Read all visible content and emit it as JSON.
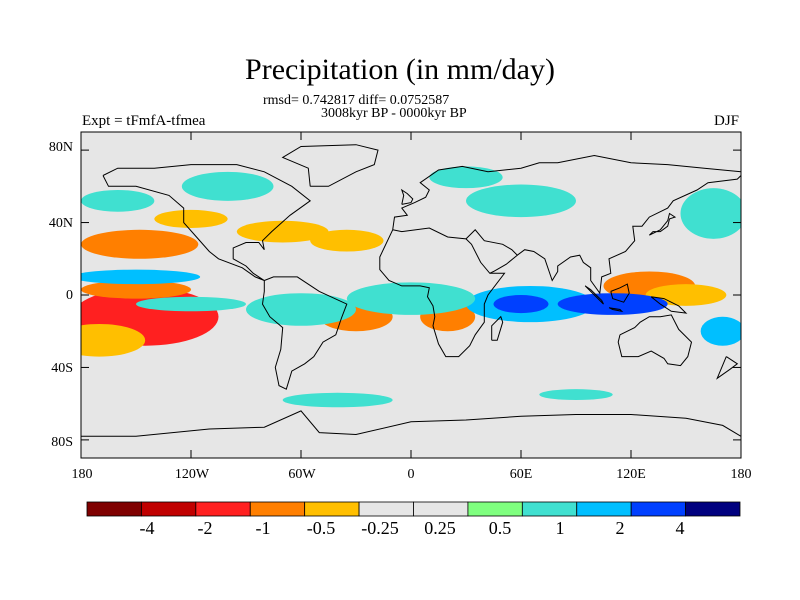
{
  "title": "Precipitation (in mm/day)",
  "stats_line": "rmsd= 0.742817 diff= 0.0752587",
  "period_line": "3008kyr BP - 0000kyr BP",
  "experiment_label": "Expt = tFmfA-tfmea",
  "season_label": "DJF",
  "map": {
    "lon_range": [
      -180,
      180
    ],
    "lat_range": [
      -90,
      90
    ],
    "y_ticks": [
      {
        "lat": 80,
        "label": "80N"
      },
      {
        "lat": 40,
        "label": "40N"
      },
      {
        "lat": 0,
        "label": "0"
      },
      {
        "lat": -40,
        "label": "40S"
      },
      {
        "lat": -80,
        "label": "80S"
      }
    ],
    "x_ticks": [
      {
        "lon": -180,
        "label": "180"
      },
      {
        "lon": -120,
        "label": "120W"
      },
      {
        "lon": -60,
        "label": "60W"
      },
      {
        "lon": 0,
        "label": "0"
      },
      {
        "lon": 60,
        "label": "60E"
      },
      {
        "lon": 120,
        "label": "120E"
      },
      {
        "lon": 180,
        "label": "180"
      }
    ],
    "background_color": "#e6e6e6"
  },
  "colorbar": {
    "colors": [
      "#7f0000",
      "#c00000",
      "#ff2020",
      "#ff7f00",
      "#ffbf00",
      "#e6e6e6",
      "#e6e6e6",
      "#7fff7f",
      "#40e0d0",
      "#00bfff",
      "#0040ff",
      "#00007f"
    ],
    "labels": [
      "-4",
      "-2",
      "-1",
      "-0.5",
      "-0.25",
      "0.25",
      "0.5",
      "1",
      "2",
      "4"
    ]
  },
  "anomalies": [
    {
      "lon": -150,
      "lat": -12,
      "rx": 22,
      "ry": 10,
      "level": -4
    },
    {
      "lon": -145,
      "lat": -12,
      "rx": 40,
      "ry": 16,
      "level": -2
    },
    {
      "lon": -150,
      "lat": 3,
      "rx": 30,
      "ry": 5,
      "level": -1
    },
    {
      "lon": -148,
      "lat": 28,
      "rx": 32,
      "ry": 8,
      "level": -1
    },
    {
      "lon": -70,
      "lat": 35,
      "rx": 25,
      "ry": 6,
      "level": -0.5
    },
    {
      "lon": -35,
      "lat": 30,
      "rx": 20,
      "ry": 6,
      "level": -0.5
    },
    {
      "lon": -30,
      "lat": -12,
      "rx": 20,
      "ry": 8,
      "level": -1
    },
    {
      "lon": 20,
      "lat": -12,
      "rx": 15,
      "ry": 8,
      "level": -1
    },
    {
      "lon": 130,
      "lat": 5,
      "rx": 25,
      "ry": 8,
      "level": -1
    },
    {
      "lon": 150,
      "lat": 0,
      "rx": 22,
      "ry": 6,
      "level": -0.5
    },
    {
      "lon": -170,
      "lat": -25,
      "rx": 25,
      "ry": 9,
      "level": -0.5
    },
    {
      "lon": -120,
      "lat": 42,
      "rx": 20,
      "ry": 5,
      "level": -0.5
    },
    {
      "lon": 65,
      "lat": -5,
      "rx": 35,
      "ry": 10,
      "level": 1
    },
    {
      "lon": 60,
      "lat": -5,
      "rx": 15,
      "ry": 5,
      "level": 2
    },
    {
      "lon": 110,
      "lat": -5,
      "rx": 30,
      "ry": 6,
      "level": 2
    },
    {
      "lon": -150,
      "lat": 10,
      "rx": 35,
      "ry": 4,
      "level": 1
    },
    {
      "lon": -120,
      "lat": -5,
      "rx": 30,
      "ry": 4,
      "level": 0.5
    },
    {
      "lon": -60,
      "lat": -8,
      "rx": 30,
      "ry": 9,
      "level": 0.5
    },
    {
      "lon": 0,
      "lat": -2,
      "rx": 35,
      "ry": 9,
      "level": 0.5
    },
    {
      "lon": 60,
      "lat": 52,
      "rx": 30,
      "ry": 9,
      "level": 0.5
    },
    {
      "lon": -100,
      "lat": 60,
      "rx": 25,
      "ry": 8,
      "level": 0.5
    },
    {
      "lon": -160,
      "lat": 52,
      "rx": 20,
      "ry": 6,
      "level": 0.5
    },
    {
      "lon": 30,
      "lat": 65,
      "rx": 20,
      "ry": 6,
      "level": 0.5
    },
    {
      "lon": 165,
      "lat": 45,
      "rx": 18,
      "ry": 14,
      "level": 0.5
    },
    {
      "lon": -40,
      "lat": -58,
      "rx": 30,
      "ry": 4,
      "level": 0.5
    },
    {
      "lon": 90,
      "lat": -55,
      "rx": 20,
      "ry": 3,
      "level": 0.5
    },
    {
      "lon": 170,
      "lat": -20,
      "rx": 12,
      "ry": 8,
      "level": 1
    }
  ]
}
